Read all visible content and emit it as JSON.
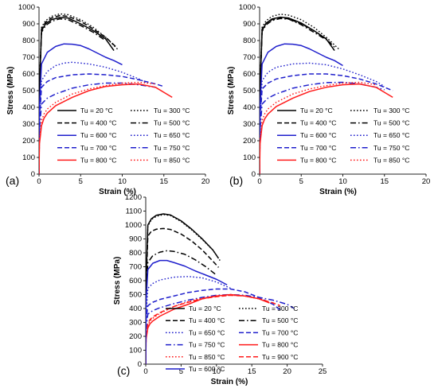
{
  "figure": {
    "colors": {
      "black": "#000000",
      "blue": "#1f1fcc",
      "red": "#ff1a1a",
      "axis": "#222222"
    }
  },
  "chart_data": [
    {
      "panel_label": "(a)",
      "type": "line",
      "xlabel": "Strain (%)",
      "ylabel": "Stress (MPa)",
      "xlim": [
        0,
        20
      ],
      "ylim": [
        0,
        1000
      ],
      "xticks": [
        "0",
        "5",
        "10",
        "15",
        "20"
      ],
      "yticks": [
        "0",
        "100",
        "200",
        "300",
        "400",
        "500",
        "600",
        "700",
        "800",
        "900",
        "1000"
      ],
      "grid": false,
      "legend_placement": "bottom",
      "series": [
        {
          "name": "Tu = 20 °C",
          "color": "black",
          "dash": "solid",
          "x": [
            0,
            0.05,
            0.3,
            0.8,
            1.5,
            2.5,
            3.5,
            5,
            6.5,
            8,
            9
          ],
          "y": [
            0,
            500,
            860,
            900,
            925,
            938,
            935,
            900,
            860,
            810,
            740
          ]
        },
        {
          "name": "Tu = 300 °C",
          "color": "black",
          "dash": "dot",
          "x": [
            0,
            0.05,
            0.3,
            0.8,
            1.5,
            2.5,
            3.5,
            5,
            6.5,
            8,
            9.5
          ],
          "y": [
            0,
            520,
            880,
            920,
            945,
            960,
            955,
            925,
            880,
            820,
            745
          ]
        },
        {
          "name": "Tu = 400 °C",
          "color": "black",
          "dash": "dash",
          "x": [
            0,
            0.05,
            0.3,
            0.8,
            1.5,
            2.5,
            3.5,
            5,
            6.5,
            8,
            9.3
          ],
          "y": [
            0,
            510,
            870,
            910,
            935,
            950,
            945,
            915,
            870,
            820,
            760
          ]
        },
        {
          "name": "Tu = 500 °C",
          "color": "black",
          "dash": "dashdot",
          "x": [
            0,
            0.05,
            0.3,
            0.8,
            1.5,
            2.5,
            3.5,
            5,
            6.5,
            8
          ],
          "y": [
            0,
            500,
            850,
            890,
            915,
            930,
            925,
            890,
            850,
            800
          ]
        },
        {
          "name": "Tu = 600 °C",
          "color": "blue",
          "dash": "solid",
          "x": [
            0,
            0.05,
            0.3,
            1,
            2,
            3,
            4,
            5,
            6,
            7,
            8,
            9,
            10
          ],
          "y": [
            0,
            400,
            660,
            730,
            765,
            780,
            778,
            770,
            750,
            725,
            700,
            680,
            655
          ]
        },
        {
          "name": "Tu = 650 °C",
          "color": "blue",
          "dash": "dot",
          "x": [
            0,
            0.05,
            0.3,
            1,
            2,
            3,
            4,
            6,
            8,
            10,
            12,
            13
          ],
          "y": [
            0,
            350,
            560,
            615,
            650,
            665,
            670,
            660,
            640,
            610,
            570,
            545
          ]
        },
        {
          "name": "Tu = 700 °C",
          "color": "blue",
          "dash": "dash",
          "x": [
            0,
            0.05,
            0.3,
            1,
            2,
            4,
            6,
            8,
            10,
            12,
            14,
            15
          ],
          "y": [
            0,
            320,
            520,
            555,
            578,
            595,
            600,
            595,
            585,
            565,
            540,
            525
          ]
        },
        {
          "name": "Tu = 750 °C",
          "color": "blue",
          "dash": "dashdot",
          "x": [
            0,
            0.05,
            0.3,
            1,
            2,
            4,
            6,
            8,
            10,
            12,
            14
          ],
          "y": [
            0,
            260,
            420,
            455,
            480,
            515,
            535,
            545,
            545,
            535,
            520
          ]
        },
        {
          "name": "Tu = 800 °C",
          "color": "red",
          "dash": "solid",
          "x": [
            0,
            0.05,
            0.3,
            0.6,
            1,
            2,
            4,
            6,
            8,
            10,
            12,
            14,
            15,
            16
          ],
          "y": [
            0,
            180,
            290,
            335,
            365,
            410,
            460,
            500,
            525,
            535,
            540,
            520,
            490,
            460
          ]
        },
        {
          "name": "Tu = 850 °C",
          "color": "red",
          "dash": "dot",
          "x": [
            0,
            0.05,
            0.3,
            0.6,
            1,
            2,
            4,
            6,
            8,
            10,
            12,
            14
          ],
          "y": [
            0,
            200,
            320,
            360,
            390,
            430,
            480,
            510,
            530,
            545,
            550,
            540
          ]
        }
      ]
    },
    {
      "panel_label": "(b)",
      "type": "line",
      "xlabel": "Strain (%)",
      "ylabel": "Stress (MPa)",
      "xlim": [
        0,
        20
      ],
      "ylim": [
        0,
        1000
      ],
      "xticks": [
        "0",
        "5",
        "10",
        "15",
        "20"
      ],
      "yticks": [
        "0",
        "100",
        "200",
        "300",
        "400",
        "500",
        "600",
        "700",
        "800",
        "900",
        "1000"
      ],
      "grid": false,
      "legend_placement": "bottom",
      "series": [
        {
          "name": "Tu = 20 °C",
          "color": "black",
          "dash": "solid",
          "x": [
            0,
            0.05,
            0.3,
            0.8,
            1.5,
            2.5,
            3.5,
            5,
            6.5,
            8,
            9
          ],
          "y": [
            0,
            500,
            860,
            905,
            930,
            940,
            935,
            905,
            860,
            810,
            740
          ]
        },
        {
          "name": "Tu = 300 °C",
          "color": "black",
          "dash": "dot",
          "x": [
            0,
            0.05,
            0.3,
            0.8,
            1.5,
            2.5,
            3.5,
            5,
            6.5,
            8,
            9.5
          ],
          "y": [
            0,
            520,
            880,
            920,
            945,
            958,
            952,
            925,
            880,
            820,
            750
          ]
        },
        {
          "name": "Tu = 400 °C",
          "color": "black",
          "dash": "dash",
          "x": [
            0,
            0.05,
            0.3,
            0.8,
            1.5,
            2.5,
            3.5,
            5,
            6.5,
            8,
            9
          ],
          "y": [
            0,
            510,
            870,
            905,
            925,
            935,
            930,
            900,
            860,
            810,
            760
          ]
        },
        {
          "name": "Tu = 500 °C",
          "color": "black",
          "dash": "dashdot",
          "x": [
            0,
            0.05,
            0.3,
            0.8,
            1.5,
            2.5,
            3.5,
            5,
            6.5,
            8
          ],
          "y": [
            0,
            500,
            855,
            895,
            920,
            932,
            928,
            895,
            850,
            805
          ]
        },
        {
          "name": "Tu = 600 °C",
          "color": "blue",
          "dash": "solid",
          "x": [
            0,
            0.05,
            0.3,
            1,
            2,
            3,
            4,
            5,
            6,
            7,
            8,
            9,
            10
          ],
          "y": [
            0,
            400,
            660,
            730,
            765,
            780,
            778,
            770,
            750,
            725,
            700,
            680,
            650
          ]
        },
        {
          "name": "Tu = 650 °C",
          "color": "blue",
          "dash": "dot",
          "x": [
            0,
            0.05,
            0.3,
            1,
            2,
            4,
            6,
            8,
            10,
            12,
            14,
            15
          ],
          "y": [
            0,
            350,
            560,
            610,
            640,
            660,
            665,
            655,
            630,
            595,
            555,
            525
          ]
        },
        {
          "name": "Tu = 700 °C",
          "color": "blue",
          "dash": "dash",
          "x": [
            0,
            0.05,
            0.3,
            1,
            2,
            4,
            6,
            8,
            10,
            12,
            14,
            16
          ],
          "y": [
            0,
            320,
            510,
            545,
            570,
            590,
            600,
            600,
            590,
            570,
            540,
            500
          ]
        },
        {
          "name": "Tu = 750 °C",
          "color": "blue",
          "dash": "dashdot",
          "x": [
            0,
            0.05,
            0.3,
            1,
            2,
            4,
            6,
            8,
            10,
            12,
            14,
            15
          ],
          "y": [
            0,
            260,
            420,
            455,
            480,
            515,
            535,
            548,
            550,
            540,
            520,
            505
          ]
        },
        {
          "name": "Tu = 800 °C",
          "color": "red",
          "dash": "solid",
          "x": [
            0,
            0.05,
            0.3,
            0.6,
            1,
            2,
            4,
            6,
            8,
            10,
            12,
            14,
            15,
            16
          ],
          "y": [
            0,
            180,
            290,
            330,
            360,
            405,
            455,
            495,
            520,
            535,
            540,
            520,
            490,
            460
          ]
        },
        {
          "name": "Tu = 850 °C",
          "color": "red",
          "dash": "dot",
          "x": [
            0,
            0.05,
            0.3,
            0.6,
            1,
            2,
            4,
            6,
            8,
            10,
            12,
            14
          ],
          "y": [
            0,
            200,
            320,
            360,
            390,
            430,
            480,
            510,
            530,
            545,
            550,
            535
          ]
        }
      ]
    },
    {
      "panel_label": "(c)",
      "type": "line",
      "xlabel": "Strain (%)",
      "ylabel": "Stress (MPa)",
      "xlim": [
        0,
        25
      ],
      "ylim": [
        0,
        1200
      ],
      "xticks": [
        "0",
        "5",
        "10",
        "15",
        "20",
        "25"
      ],
      "yticks": [
        "0",
        "100",
        "200",
        "300",
        "400",
        "500",
        "600",
        "700",
        "800",
        "900",
        "1000",
        "1100",
        "1200"
      ],
      "grid": false,
      "legend_placement": "bottom",
      "series": [
        {
          "name": "Tu = 20 °C",
          "color": "black",
          "dash": "solid",
          "x": [
            0,
            0.05,
            0.3,
            0.8,
            1.5,
            2.5,
            3.5,
            5,
            6.5,
            8,
            9.5,
            10.3
          ],
          "y": [
            0,
            600,
            1000,
            1045,
            1070,
            1080,
            1072,
            1030,
            970,
            900,
            820,
            760
          ]
        },
        {
          "name": "Tu = 300 °C",
          "color": "black",
          "dash": "dot",
          "x": [
            0,
            0.05,
            0.3,
            0.8,
            1.5,
            2.5,
            3.5,
            5,
            6.5,
            8,
            9.5,
            10.5
          ],
          "y": [
            0,
            600,
            990,
            1040,
            1062,
            1075,
            1068,
            1025,
            965,
            895,
            820,
            745
          ]
        },
        {
          "name": "Tu = 400 °C",
          "color": "black",
          "dash": "dash",
          "x": [
            0,
            0.05,
            0.3,
            0.8,
            1.5,
            2.5,
            3.5,
            5,
            6.5,
            8,
            9.5,
            10.3
          ],
          "y": [
            0,
            560,
            920,
            955,
            970,
            975,
            968,
            935,
            885,
            820,
            740,
            695
          ]
        },
        {
          "name": "Tu = 500 °C",
          "color": "black",
          "dash": "dashdot",
          "x": [
            0,
            0.05,
            0.3,
            1,
            2,
            3,
            4,
            5.5,
            7,
            8.5,
            10
          ],
          "y": [
            0,
            500,
            730,
            780,
            805,
            815,
            810,
            790,
            750,
            700,
            640
          ]
        },
        {
          "name": "Tu = 650 °C",
          "color": "blue",
          "dash": "dot",
          "x": [
            0,
            0.05,
            0.3,
            1,
            2,
            4,
            6,
            8,
            10,
            12
          ],
          "y": [
            0,
            350,
            545,
            580,
            605,
            625,
            630,
            620,
            590,
            545
          ]
        },
        {
          "name": "Tu = 700 °C",
          "color": "blue",
          "dash": "dash",
          "x": [
            0,
            0.05,
            0.3,
            1,
            2,
            4,
            6,
            8,
            10,
            12,
            14,
            16,
            18,
            19
          ],
          "y": [
            0,
            320,
            420,
            445,
            465,
            490,
            515,
            530,
            540,
            540,
            520,
            480,
            430,
            390
          ]
        },
        {
          "name": "Tu = 750 °C",
          "color": "blue",
          "dash": "dashdot",
          "x": [
            0,
            0.05,
            0.3,
            1,
            2,
            4,
            6,
            8,
            10,
            12,
            14,
            16,
            18,
            20,
            21
          ],
          "y": [
            0,
            260,
            360,
            385,
            405,
            435,
            460,
            480,
            495,
            500,
            495,
            480,
            460,
            430,
            400
          ]
        },
        {
          "name": "Tu = 800 °C",
          "color": "red",
          "dash": "solid",
          "x": [
            0,
            0.05,
            0.3,
            0.6,
            1,
            2,
            4,
            6,
            8,
            10,
            12,
            14,
            16,
            17.5
          ],
          "y": [
            0,
            180,
            260,
            290,
            310,
            345,
            395,
            430,
            470,
            490,
            500,
            490,
            470,
            440
          ]
        },
        {
          "name": "Tu = 850 °C",
          "color": "red",
          "dash": "dot",
          "x": [
            0,
            0.05,
            0.3,
            0.6,
            1,
            2,
            4,
            6,
            8,
            10,
            12,
            14,
            16
          ],
          "y": [
            0,
            190,
            280,
            310,
            330,
            365,
            415,
            450,
            475,
            490,
            495,
            490,
            470
          ]
        },
        {
          "name": "Tu = 900 °C",
          "color": "red",
          "dash": "dash",
          "x": [
            0,
            0.05,
            0.3,
            0.6,
            1,
            2,
            4,
            6,
            8,
            10,
            12,
            14,
            16,
            18,
            19
          ],
          "y": [
            0,
            200,
            290,
            320,
            340,
            370,
            415,
            445,
            470,
            485,
            495,
            490,
            470,
            440,
            420
          ]
        },
        {
          "name": "Tu = 600 °C",
          "color": "blue",
          "dash": "solid",
          "x": [
            0,
            0.05,
            0.3,
            1,
            2,
            3,
            4,
            5.5,
            7,
            8.5,
            10,
            11.5
          ],
          "y": [
            0,
            450,
            680,
            725,
            745,
            745,
            730,
            705,
            670,
            640,
            610,
            570
          ]
        }
      ]
    }
  ]
}
